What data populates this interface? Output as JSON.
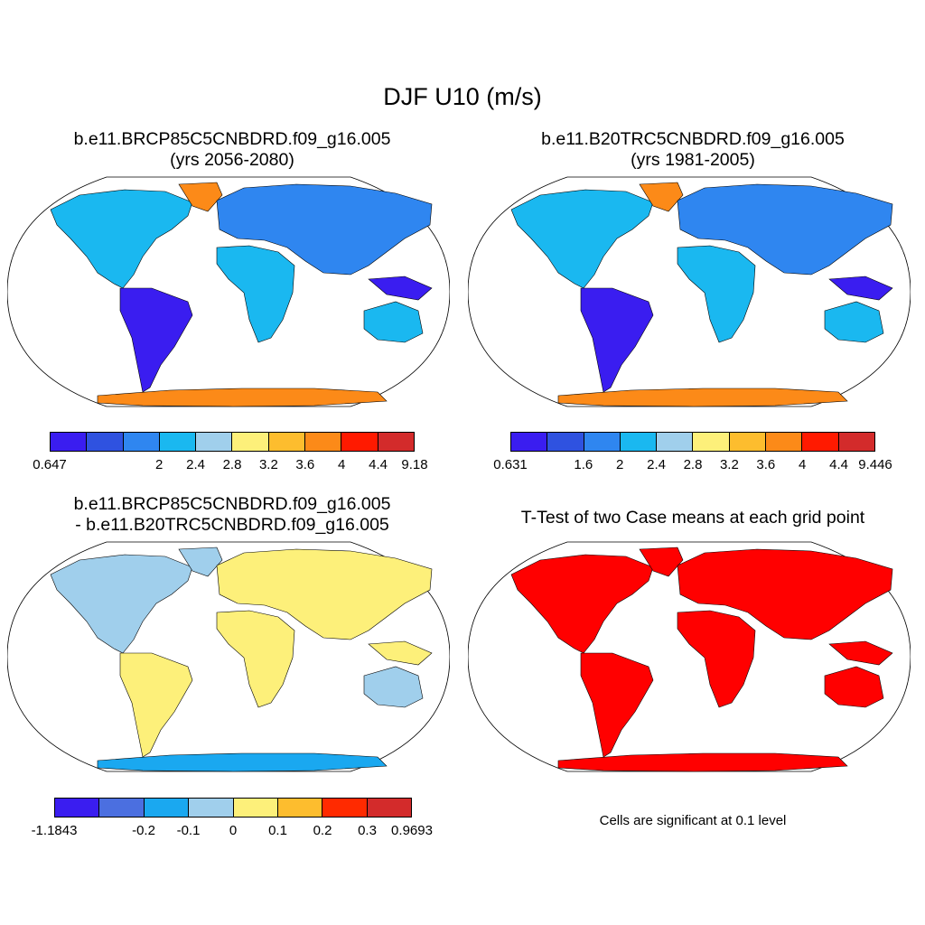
{
  "title": "DJF U10 (m/s)",
  "panels": [
    {
      "id": "p1",
      "title_line1": "b.e11.BRCP85C5CNBDRD.f09_g16.005",
      "title_line2": "(yrs 2056-2080)"
    },
    {
      "id": "p2",
      "title_line1": "b.e11.B20TRC5CNBDRD.f09_g16.005",
      "title_line2": "(yrs 1981-2005)"
    },
    {
      "id": "p3",
      "title_line1": "b.e11.BRCP85C5CNBDRD.f09_g16.005",
      "title_line2": "- b.e11.B20TRC5CNBDRD.f09_g16.005"
    },
    {
      "id": "p4",
      "title_line1": "T-Test of two Case means at each grid point",
      "title_line2": ""
    }
  ],
  "colorbars": {
    "cb1": {
      "colors": [
        "#3a1df0",
        "#2f52e0",
        "#2f86f0",
        "#1ab8f0",
        "#a0cfec",
        "#fdf07a",
        "#fdbd2e",
        "#fc8a18",
        "#ff1a00",
        "#d32b2b"
      ],
      "labels": [
        "0.647",
        "2",
        "2.4",
        "2.8",
        "3.2",
        "3.6",
        "4",
        "4.4",
        "9.18"
      ]
    },
    "cb2": {
      "colors": [
        "#3a1df0",
        "#2f52e0",
        "#2f86f0",
        "#1ab8f0",
        "#a0cfec",
        "#fdf07a",
        "#fdbd2e",
        "#fc8a18",
        "#ff1a00",
        "#d32b2b"
      ],
      "labels": [
        "0.631",
        "1.6",
        "2",
        "2.4",
        "2.8",
        "3.2",
        "3.6",
        "4",
        "4.4",
        "9.446"
      ]
    },
    "cb3": {
      "colors": [
        "#3a1df0",
        "#4b6fe0",
        "#1aa8f0",
        "#a0cfec",
        "#fdf07a",
        "#fdbd2e",
        "#ff2a00",
        "#d32b2b"
      ],
      "labels": [
        "-1.1843",
        "-0.2",
        "-0.1",
        "0",
        "0.1",
        "0.2",
        "0.3",
        "0.9693"
      ]
    }
  },
  "significance_note": "Cells are significant at 0.1 level",
  "colors": {
    "significant": "#ff0000",
    "outline": "#000000"
  }
}
